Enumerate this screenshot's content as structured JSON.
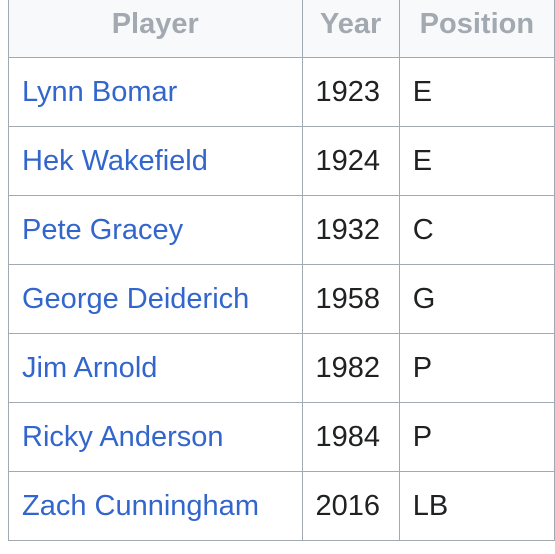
{
  "table": {
    "headers": {
      "player": "Player",
      "year": "Year",
      "position": "Position"
    },
    "rows": [
      {
        "player": "Lynn Bomar",
        "year": "1923",
        "position": "E"
      },
      {
        "player": "Hek Wakefield",
        "year": "1924",
        "position": "E"
      },
      {
        "player": "Pete Gracey",
        "year": "1932",
        "position": "C"
      },
      {
        "player": "George Deiderich",
        "year": "1958",
        "position": "G"
      },
      {
        "player": "Jim Arnold",
        "year": "1982",
        "position": "P"
      },
      {
        "player": "Ricky Anderson",
        "year": "1984",
        "position": "P"
      },
      {
        "player": "Zach Cunningham",
        "year": "2016",
        "position": "LB"
      }
    ]
  },
  "colors": {
    "link": "#3366cc",
    "header_text": "#a2a9b1",
    "border": "#a2a9b1",
    "body_text": "#202122"
  }
}
